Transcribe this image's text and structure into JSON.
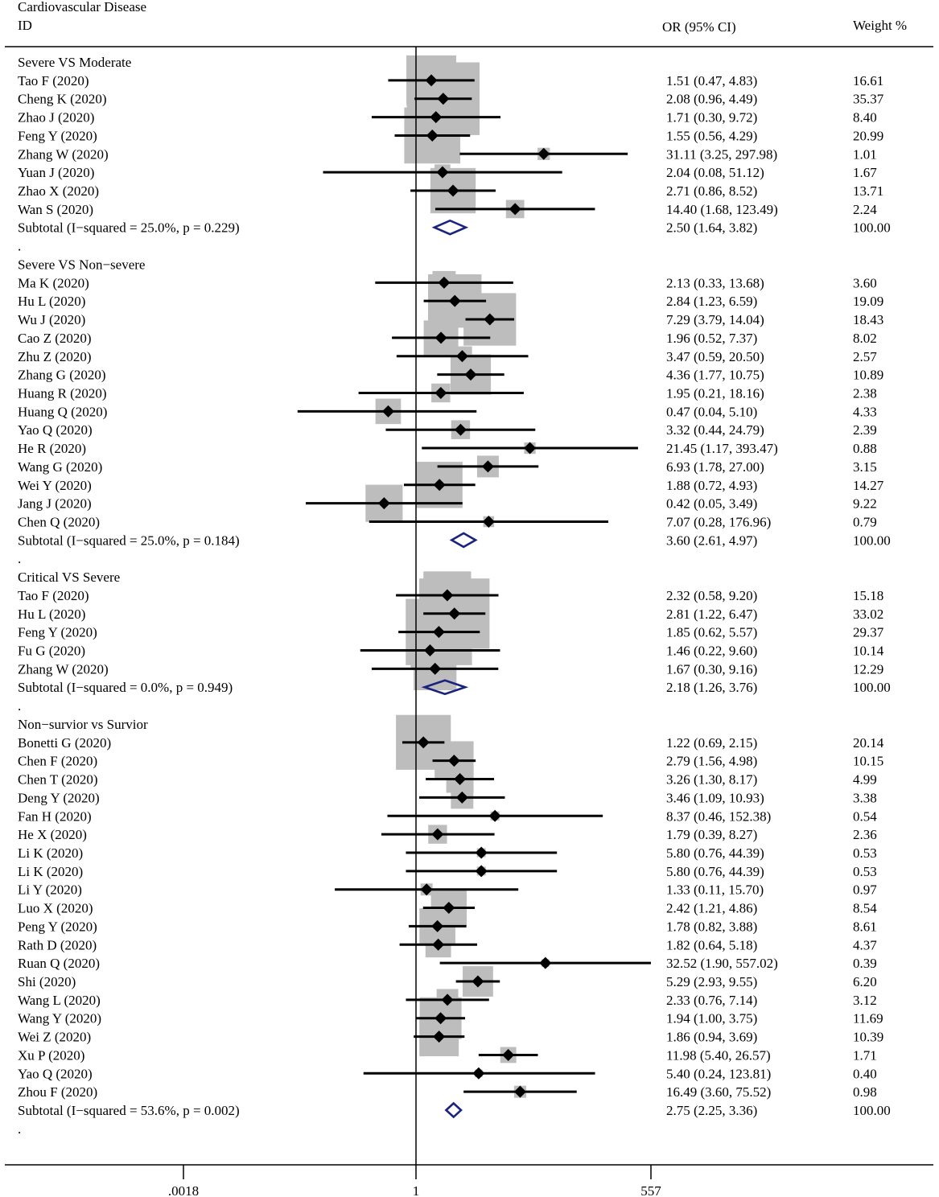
{
  "chart_data": {
    "type": "forest",
    "title": "Cardiovascular Disease",
    "headers": {
      "id": "ID",
      "effect": "OR (95% CI)",
      "weight": "Weight %"
    },
    "x_scale": "log",
    "xlim": [
      0.0018,
      557
    ],
    "x_ticks": [
      {
        "value": 0.0018,
        "label": ".0018"
      },
      {
        "value": 1,
        "label": "1"
      },
      {
        "value": 557,
        "label": "557"
      }
    ],
    "reference_line": 1,
    "groups": [
      {
        "label": "Severe VS Moderate",
        "studies": [
          {
            "id": "Tao F  (2020)",
            "or": 1.51,
            "lo": 0.47,
            "hi": 4.83,
            "ci_text": "1.51 (0.47, 4.83)",
            "weight": 16.61,
            "weight_text": "16.61"
          },
          {
            "id": "Cheng K  (2020)",
            "or": 2.08,
            "lo": 0.96,
            "hi": 4.49,
            "ci_text": "2.08 (0.96, 4.49)",
            "weight": 35.37,
            "weight_text": "35.37"
          },
          {
            "id": "Zhao J  (2020)",
            "or": 1.71,
            "lo": 0.3,
            "hi": 9.72,
            "ci_text": "1.71 (0.30, 9.72)",
            "weight": 8.4,
            "weight_text": "8.40"
          },
          {
            "id": "Feng Y  (2020)",
            "or": 1.55,
            "lo": 0.56,
            "hi": 4.29,
            "ci_text": "1.55 (0.56, 4.29)",
            "weight": 20.99,
            "weight_text": "20.99"
          },
          {
            "id": "Zhang W  (2020)",
            "or": 31.11,
            "lo": 3.25,
            "hi": 297.98,
            "ci_text": "31.11 (3.25, 297.98)",
            "weight": 1.01,
            "weight_text": "1.01"
          },
          {
            "id": "Yuan J  (2020)",
            "or": 2.04,
            "lo": 0.08,
            "hi": 51.12,
            "ci_text": "2.04 (0.08, 51.12)",
            "weight": 1.67,
            "weight_text": "1.67"
          },
          {
            "id": "Zhao X  (2020)",
            "or": 2.71,
            "lo": 0.86,
            "hi": 8.52,
            "ci_text": "2.71 (0.86, 8.52)",
            "weight": 13.71,
            "weight_text": "13.71"
          },
          {
            "id": "Wan S  (2020)",
            "or": 14.4,
            "lo": 1.68,
            "hi": 123.49,
            "ci_text": "14.40 (1.68, 123.49)",
            "weight": 2.24,
            "weight_text": "2.24"
          }
        ],
        "subtotal": {
          "label": "Subtotal  (I−squared = 25.0%, p = 0.229)",
          "or": 2.5,
          "lo": 1.64,
          "hi": 3.82,
          "ci_text": "2.50 (1.64, 3.82)",
          "weight_text": "100.00"
        }
      },
      {
        "label": "Severe VS Non−severe",
        "studies": [
          {
            "id": "Ma K  (2020)",
            "or": 2.13,
            "lo": 0.33,
            "hi": 13.68,
            "ci_text": "2.13 (0.33, 13.68)",
            "weight": 3.6,
            "weight_text": "3.60"
          },
          {
            "id": "Hu L  (2020)",
            "or": 2.84,
            "lo": 1.23,
            "hi": 6.59,
            "ci_text": "2.84 (1.23, 6.59)",
            "weight": 19.09,
            "weight_text": "19.09"
          },
          {
            "id": "Wu J  (2020)",
            "or": 7.29,
            "lo": 3.79,
            "hi": 14.04,
            "ci_text": "7.29 (3.79, 14.04)",
            "weight": 18.43,
            "weight_text": "18.43"
          },
          {
            "id": "Cao Z  (2020)",
            "or": 1.96,
            "lo": 0.52,
            "hi": 7.37,
            "ci_text": "1.96 (0.52, 7.37)",
            "weight": 8.02,
            "weight_text": "8.02"
          },
          {
            "id": "Zhu Z  (2020)",
            "or": 3.47,
            "lo": 0.59,
            "hi": 20.5,
            "ci_text": "3.47 (0.59, 20.50)",
            "weight": 2.57,
            "weight_text": "2.57"
          },
          {
            "id": "Zhang G  (2020)",
            "or": 4.36,
            "lo": 1.77,
            "hi": 10.75,
            "ci_text": "4.36 (1.77, 10.75)",
            "weight": 10.89,
            "weight_text": "10.89"
          },
          {
            "id": "Huang R  (2020)",
            "or": 1.95,
            "lo": 0.21,
            "hi": 18.16,
            "ci_text": "1.95 (0.21, 18.16)",
            "weight": 2.38,
            "weight_text": "2.38"
          },
          {
            "id": "Huang Q  (2020)",
            "or": 0.47,
            "lo": 0.04,
            "hi": 5.1,
            "ci_text": "0.47 (0.04, 5.10)",
            "weight": 4.33,
            "weight_text": "4.33"
          },
          {
            "id": "Yao Q  (2020)",
            "or": 3.32,
            "lo": 0.44,
            "hi": 24.79,
            "ci_text": "3.32 (0.44, 24.79)",
            "weight": 2.39,
            "weight_text": "2.39"
          },
          {
            "id": "He R  (2020)",
            "or": 21.45,
            "lo": 1.17,
            "hi": 393.47,
            "ci_text": "21.45 (1.17, 393.47)",
            "weight": 0.88,
            "weight_text": "0.88"
          },
          {
            "id": "Wang G  (2020)",
            "or": 6.93,
            "lo": 1.78,
            "hi": 27.0,
            "ci_text": "6.93 (1.78, 27.00)",
            "weight": 3.15,
            "weight_text": "3.15"
          },
          {
            "id": "Wei Y  (2020)",
            "or": 1.88,
            "lo": 0.72,
            "hi": 4.93,
            "ci_text": "1.88 (0.72, 4.93)",
            "weight": 14.27,
            "weight_text": "14.27"
          },
          {
            "id": "Jang J  (2020)",
            "or": 0.42,
            "lo": 0.05,
            "hi": 3.49,
            "ci_text": "0.42 (0.05, 3.49)",
            "weight": 9.22,
            "weight_text": "9.22"
          },
          {
            "id": "Chen Q  (2020)",
            "or": 7.07,
            "lo": 0.28,
            "hi": 176.96,
            "ci_text": "7.07 (0.28, 176.96)",
            "weight": 0.79,
            "weight_text": "0.79"
          }
        ],
        "subtotal": {
          "label": "Subtotal  (I−squared = 25.0%, p = 0.184)",
          "or": 3.6,
          "lo": 2.61,
          "hi": 4.97,
          "ci_text": "3.60 (2.61, 4.97)",
          "weight_text": "100.00"
        }
      },
      {
        "label": "Critical VS Severe",
        "studies": [
          {
            "id": "Tao F  (2020)",
            "or": 2.32,
            "lo": 0.58,
            "hi": 9.2,
            "ci_text": "2.32 (0.58, 9.20)",
            "weight": 15.18,
            "weight_text": "15.18"
          },
          {
            "id": "Hu L  (2020)",
            "or": 2.81,
            "lo": 1.22,
            "hi": 6.47,
            "ci_text": "2.81 (1.22, 6.47)",
            "weight": 33.02,
            "weight_text": "33.02"
          },
          {
            "id": "Feng Y  (2020)",
            "or": 1.85,
            "lo": 0.62,
            "hi": 5.57,
            "ci_text": "1.85 (0.62, 5.57)",
            "weight": 29.37,
            "weight_text": "29.37"
          },
          {
            "id": "Fu G  (2020)",
            "or": 1.46,
            "lo": 0.22,
            "hi": 9.6,
            "ci_text": "1.46 (0.22, 9.60)",
            "weight": 10.14,
            "weight_text": "10.14"
          },
          {
            "id": "Zhang W  (2020)",
            "or": 1.67,
            "lo": 0.3,
            "hi": 9.16,
            "ci_text": "1.67 (0.30, 9.16)",
            "weight": 12.29,
            "weight_text": "12.29"
          }
        ],
        "subtotal": {
          "label": "Subtotal  (I−squared = 0.0%, p = 0.949)",
          "or": 2.18,
          "lo": 1.26,
          "hi": 3.76,
          "ci_text": "2.18 (1.26, 3.76)",
          "weight_text": "100.00"
        }
      },
      {
        "label": "Non−survior vs Survior",
        "studies": [
          {
            "id": "Bonetti G (2020)",
            "or": 1.22,
            "lo": 0.69,
            "hi": 2.15,
            "ci_text": "1.22 (0.69, 2.15)",
            "weight": 20.14,
            "weight_text": "20.14"
          },
          {
            "id": "Chen F (2020)",
            "or": 2.79,
            "lo": 1.56,
            "hi": 4.98,
            "ci_text": "2.79 (1.56, 4.98)",
            "weight": 10.15,
            "weight_text": "10.15"
          },
          {
            "id": "Chen T (2020)",
            "or": 3.26,
            "lo": 1.3,
            "hi": 8.17,
            "ci_text": "3.26 (1.30, 8.17)",
            "weight": 4.99,
            "weight_text": "4.99"
          },
          {
            "id": "Deng Y (2020)",
            "or": 3.46,
            "lo": 1.09,
            "hi": 10.93,
            "ci_text": "3.46 (1.09, 10.93)",
            "weight": 3.38,
            "weight_text": "3.38"
          },
          {
            "id": "Fan H (2020)",
            "or": 8.37,
            "lo": 0.46,
            "hi": 152.38,
            "ci_text": "8.37 (0.46, 152.38)",
            "weight": 0.54,
            "weight_text": "0.54"
          },
          {
            "id": "He X (2020)",
            "or": 1.79,
            "lo": 0.39,
            "hi": 8.27,
            "ci_text": "1.79 (0.39, 8.27)",
            "weight": 2.36,
            "weight_text": "2.36"
          },
          {
            "id": "Li K (2020)",
            "or": 5.8,
            "lo": 0.76,
            "hi": 44.39,
            "ci_text": "5.80 (0.76, 44.39)",
            "weight": 0.53,
            "weight_text": "0.53"
          },
          {
            "id": "Li K (2020)",
            "or": 5.8,
            "lo": 0.76,
            "hi": 44.39,
            "ci_text": "5.80 (0.76, 44.39)",
            "weight": 0.53,
            "weight_text": "0.53"
          },
          {
            "id": "Li Y (2020)",
            "or": 1.33,
            "lo": 0.11,
            "hi": 15.7,
            "ci_text": "1.33 (0.11, 15.70)",
            "weight": 0.97,
            "weight_text": "0.97"
          },
          {
            "id": "Luo X (2020)",
            "or": 2.42,
            "lo": 1.21,
            "hi": 4.86,
            "ci_text": "2.42 (1.21, 4.86)",
            "weight": 8.54,
            "weight_text": "8.54"
          },
          {
            "id": "Peng Y (2020)",
            "or": 1.78,
            "lo": 0.82,
            "hi": 3.88,
            "ci_text": "1.78 (0.82, 3.88)",
            "weight": 8.61,
            "weight_text": "8.61"
          },
          {
            "id": "Rath D (2020)",
            "or": 1.82,
            "lo": 0.64,
            "hi": 5.18,
            "ci_text": "1.82 (0.64, 5.18)",
            "weight": 4.37,
            "weight_text": "4.37"
          },
          {
            "id": "Ruan Q (2020)",
            "or": 32.52,
            "lo": 1.9,
            "hi": 557.02,
            "ci_text": "32.52 (1.90, 557.02)",
            "weight": 0.39,
            "weight_text": "0.39"
          },
          {
            "id": "Shi (2020)",
            "or": 5.29,
            "lo": 2.93,
            "hi": 9.55,
            "ci_text": "5.29 (2.93, 9.55)",
            "weight": 6.2,
            "weight_text": "6.20"
          },
          {
            "id": "Wang L (2020)",
            "or": 2.33,
            "lo": 0.76,
            "hi": 7.14,
            "ci_text": "2.33 (0.76, 7.14)",
            "weight": 3.12,
            "weight_text": "3.12"
          },
          {
            "id": "Wang Y (2020)",
            "or": 1.94,
            "lo": 1.0,
            "hi": 3.75,
            "ci_text": "1.94 (1.00, 3.75)",
            "weight": 11.69,
            "weight_text": "11.69"
          },
          {
            "id": "Wei Z (2020)",
            "or": 1.86,
            "lo": 0.94,
            "hi": 3.69,
            "ci_text": "1.86 (0.94, 3.69)",
            "weight": 10.39,
            "weight_text": "10.39"
          },
          {
            "id": "Xu P (2020)",
            "or": 11.98,
            "lo": 5.4,
            "hi": 26.57,
            "ci_text": "11.98 (5.40, 26.57)",
            "weight": 1.71,
            "weight_text": "1.71"
          },
          {
            "id": "Yao Q (2020)",
            "or": 5.4,
            "lo": 0.24,
            "hi": 123.81,
            "ci_text": "5.40 (0.24, 123.81)",
            "weight": 0.4,
            "weight_text": "0.40"
          },
          {
            "id": "Zhou F (2020)",
            "or": 16.49,
            "lo": 3.6,
            "hi": 75.52,
            "ci_text": "16.49 (3.60, 75.52)",
            "weight": 0.98,
            "weight_text": "0.98"
          }
        ],
        "subtotal": {
          "label": "Subtotal  (I−squared = 53.6%, p = 0.002)",
          "or": 2.75,
          "lo": 2.25,
          "hi": 3.36,
          "ci_text": "2.75 (2.25, 3.36)",
          "weight_text": "100.00"
        }
      }
    ],
    "spacer_text": ".",
    "colors": {
      "marker": "#000000",
      "weight_box": "#bdbdbd",
      "diamond": "#1a237e",
      "line": "#000000"
    }
  }
}
